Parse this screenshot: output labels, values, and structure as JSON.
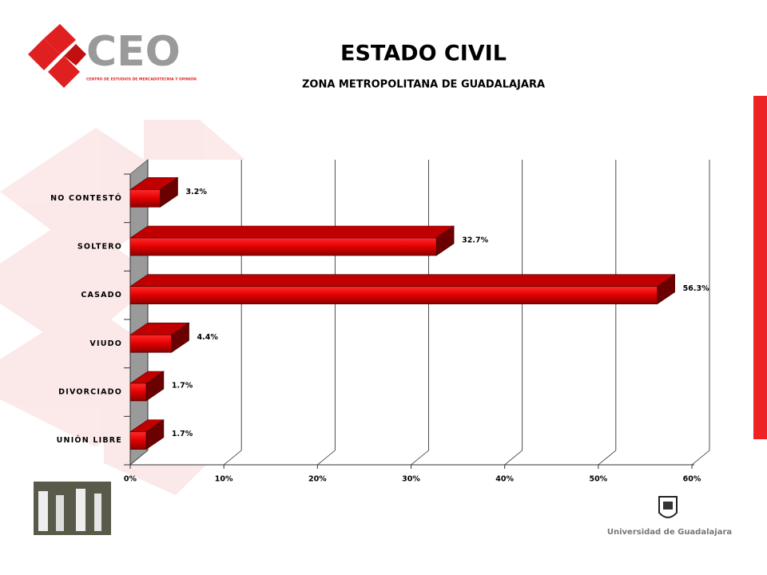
{
  "branding": {
    "logo": "CEO",
    "logo_subtitle": "CENTRO DE ESTUDIOS DE MERCADOTECNIA Y OPINIÓN",
    "university": "Universidad de Guadalajara"
  },
  "chart_data": {
    "type": "bar3d_horizontal",
    "title": "ESTADO CIVIL",
    "subtitle": "ZONA METROPOLITANA DE GUADALAJARA",
    "categories": [
      "NO CONTESTÓ",
      "SOLTERO",
      "CASADO",
      "VIUDO",
      "DIVORCIADO",
      "UNIÓN LIBRE"
    ],
    "values": [
      3.2,
      32.7,
      56.3,
      4.4,
      1.7,
      1.7
    ],
    "value_labels": [
      "3.2%",
      "32.7%",
      "56.3%",
      "4.4%",
      "1.7%",
      "1.7%"
    ],
    "color": "#e01010",
    "xlim": [
      0,
      60
    ],
    "xticks": [
      {
        "value": 0,
        "label": "0%"
      },
      {
        "value": 10,
        "label": "10%"
      },
      {
        "value": 20,
        "label": "20%"
      },
      {
        "value": 30,
        "label": "30%"
      },
      {
        "value": 40,
        "label": "40%"
      },
      {
        "value": 50,
        "label": "50%"
      },
      {
        "value": 60,
        "label": "60%"
      }
    ],
    "grid": true
  }
}
